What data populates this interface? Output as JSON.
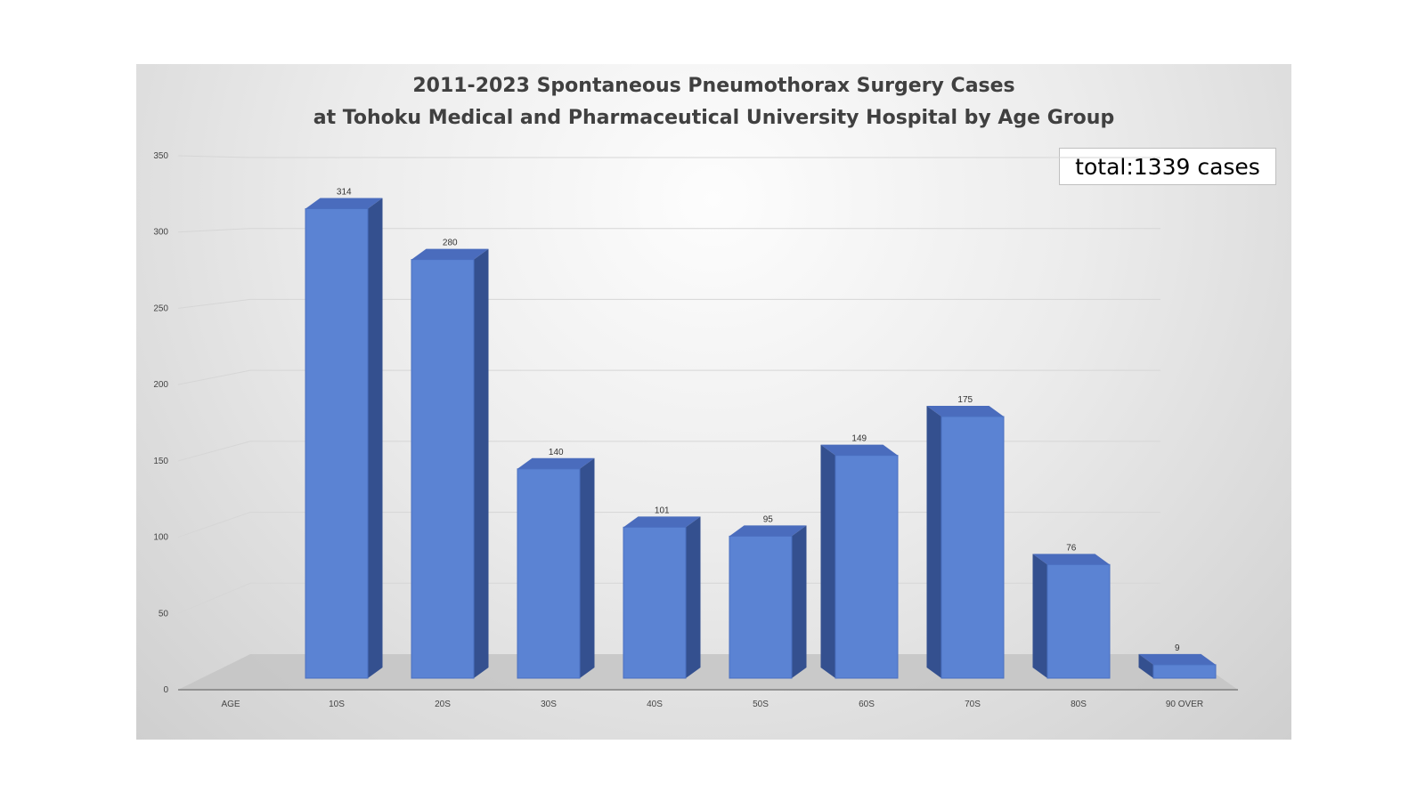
{
  "chart_data": {
    "type": "bar",
    "title": "2011-2023 Spontaneous Pneumothorax Surgery Cases",
    "subtitle": "at Tohoku Medical and Pharmaceutical University Hospital by Age Group",
    "annotation": "total:1339 cases",
    "xlabel": "AGE",
    "ylabel": "",
    "categories": [
      "10S",
      "20S",
      "30S",
      "40S",
      "50S",
      "60S",
      "70S",
      "80S",
      "90 OVER"
    ],
    "values": [
      314,
      280,
      140,
      101,
      95,
      149,
      175,
      76,
      9
    ],
    "ylim": [
      0,
      350
    ],
    "yticks": [
      0,
      50,
      100,
      150,
      200,
      250,
      300,
      350
    ],
    "grid": true,
    "bar_style": "3d",
    "colors": {
      "bar_front": "#5b83d3",
      "bar_side": "#34508f",
      "bar_top": "#4a6cbd",
      "floor": "#c4c4c4",
      "gridline": "#d6d6d6",
      "axis": "#7f7f7f"
    }
  }
}
